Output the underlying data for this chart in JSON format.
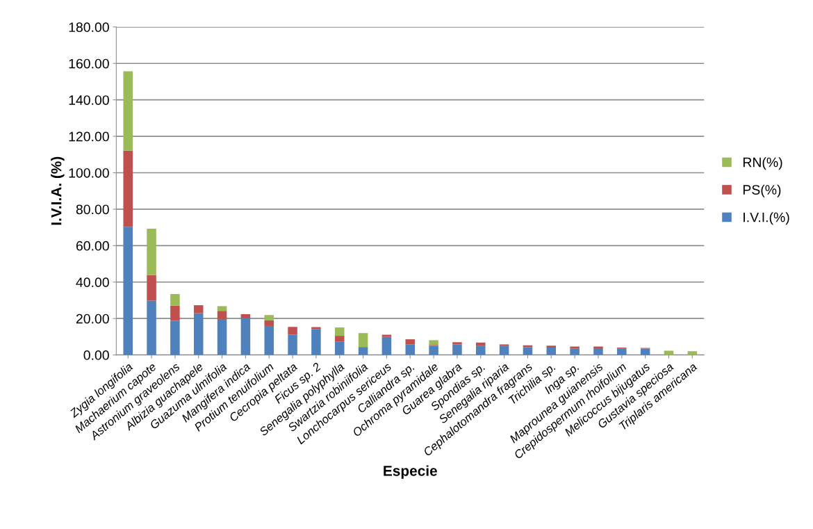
{
  "chart_data": {
    "type": "bar",
    "stacked": true,
    "xlabel": "Especie",
    "ylabel": "I.V.I.A. (%)",
    "categories": [
      "Zygia longifolia",
      "Machaerium capote",
      "Astronium graveolens",
      "Albizia guachapele",
      "Guazuma ulmifolia",
      "Mangifera indica",
      "Protium tenuifolium",
      "Cecropia peltata",
      "Ficus sp. 2",
      "Senegalia polyphylla",
      "Swartzia robiniifolia",
      "Lonchocarpus sericeus",
      "Calliandra sp.",
      "Ochroma pyramidale",
      "Guarea glabra",
      "Spondias sp.",
      "Senegalia riparia",
      "Cephalotomandra fragrans",
      "Trichilia sp.",
      "Inga sp.",
      "Maprounea guianensis",
      "Crepidospermum rhoifolium",
      "Melicoccus bijugatus",
      "Gustavia speciosa",
      "Triplaris americana"
    ],
    "series": [
      {
        "name": "I.V.I.(%)",
        "color": "#4f81bd",
        "values": [
          70.3,
          29.8,
          18.7,
          22.9,
          19.7,
          20.1,
          15.9,
          11.1,
          14.1,
          7.4,
          4.1,
          9.9,
          5.7,
          5.0,
          5.8,
          4.9,
          4.9,
          4.3,
          4.1,
          3.6,
          3.7,
          3.6,
          3.5,
          0,
          0
        ]
      },
      {
        "name": "PS(%)",
        "color": "#c0504d",
        "values": [
          41.8,
          14.0,
          8.3,
          4.4,
          4.5,
          2.3,
          3.1,
          4.3,
          1.2,
          3.1,
          0.3,
          1.2,
          2.9,
          0.5,
          1.2,
          1.9,
          0.9,
          1.0,
          1.0,
          1.0,
          0.9,
          0.5,
          0.4,
          0,
          0
        ]
      },
      {
        "name": "RN(%)",
        "color": "#9bbb59",
        "values": [
          43.6,
          25.5,
          6.4,
          0,
          2.6,
          0,
          2.9,
          0,
          0,
          4.6,
          7.6,
          0,
          0,
          2.6,
          0,
          0,
          0,
          0,
          0,
          0,
          0,
          0,
          0,
          2.3,
          2.1
        ]
      }
    ],
    "ylim": [
      0,
      180
    ],
    "yticks": [
      {
        "value": 0,
        "label": "0.00"
      },
      {
        "value": 20,
        "label": "20.00"
      },
      {
        "value": 40,
        "label": "40.00"
      },
      {
        "value": 60,
        "label": "60.00"
      },
      {
        "value": 80,
        "label": "80.00"
      },
      {
        "value": 100,
        "label": "100.00"
      },
      {
        "value": 120,
        "label": "120.00"
      },
      {
        "value": 140,
        "label": "140.00"
      },
      {
        "value": 160,
        "label": "160.00"
      },
      {
        "value": 180,
        "label": "180.00"
      }
    ],
    "grid": "y",
    "legend": "right"
  }
}
